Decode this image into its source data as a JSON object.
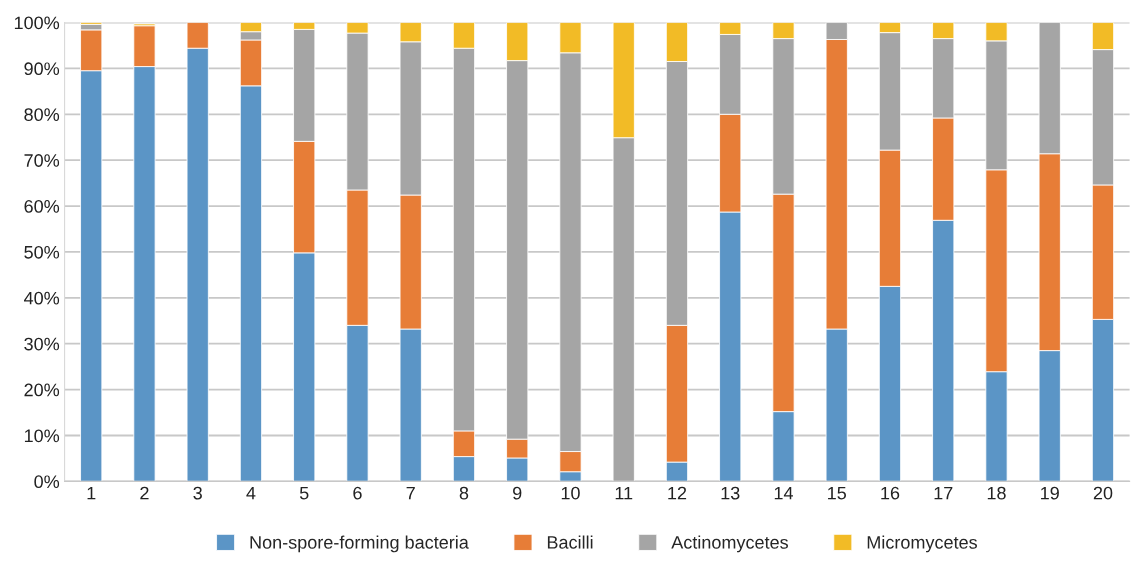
{
  "chart_data": {
    "type": "bar",
    "stacked": true,
    "categories": [
      "1",
      "2",
      "3",
      "4",
      "5",
      "6",
      "7",
      "8",
      "9",
      "10",
      "11",
      "12",
      "13",
      "14",
      "15",
      "16",
      "17",
      "18",
      "19",
      "20"
    ],
    "series": [
      {
        "name": "Non-spore-forming bacteria",
        "color": "#5b95c6",
        "values": [
          89.5,
          90.4,
          94.4,
          86.2,
          49.8,
          34.0,
          33.2,
          5.4,
          5.1,
          2.1,
          0,
          4.2,
          58.7,
          15.2,
          33.2,
          42.5,
          56.9,
          23.9,
          28.5,
          35.3
        ]
      },
      {
        "name": "Bacilli",
        "color": "#e77d37",
        "values": [
          8.9,
          8.9,
          5.6,
          10.0,
          24.3,
          29.5,
          29.2,
          5.6,
          4.1,
          4.4,
          0,
          29.8,
          21.3,
          47.4,
          63.1,
          29.7,
          22.3,
          44.0,
          42.9,
          29.3
        ]
      },
      {
        "name": "Actinomycetes",
        "color": "#a5a5a5",
        "values": [
          1.2,
          null,
          0,
          1.8,
          24.4,
          34.2,
          33.4,
          83.4,
          82.5,
          86.9,
          74.9,
          57.5,
          17.4,
          33.9,
          3.7,
          25.6,
          17.3,
          28.1,
          28.6,
          29.5
        ]
      },
      {
        "name": "Micromycetes",
        "color": "#f2bb26",
        "values": [
          0.4,
          0.4,
          0,
          2.0,
          1.5,
          2.3,
          4.2,
          5.6,
          8.3,
          6.6,
          25.1,
          8.5,
          2.6,
          3.5,
          0,
          2.2,
          3.5,
          4.0,
          0,
          5.9
        ]
      }
    ],
    "ylim": [
      0,
      100
    ],
    "yticks": [
      {
        "value": 0,
        "label": "0%"
      },
      {
        "value": 10,
        "label": "10%"
      },
      {
        "value": 20,
        "label": "20%"
      },
      {
        "value": 30,
        "label": "30%"
      },
      {
        "value": 40,
        "label": "40%"
      },
      {
        "value": 50,
        "label": "50%"
      },
      {
        "value": 60,
        "label": "60%"
      },
      {
        "value": 70,
        "label": "70%"
      },
      {
        "value": 80,
        "label": "80%"
      },
      {
        "value": 90,
        "label": "90%"
      },
      {
        "value": 100,
        "label": "100%"
      }
    ],
    "grid": "y",
    "legend": "bottom"
  }
}
